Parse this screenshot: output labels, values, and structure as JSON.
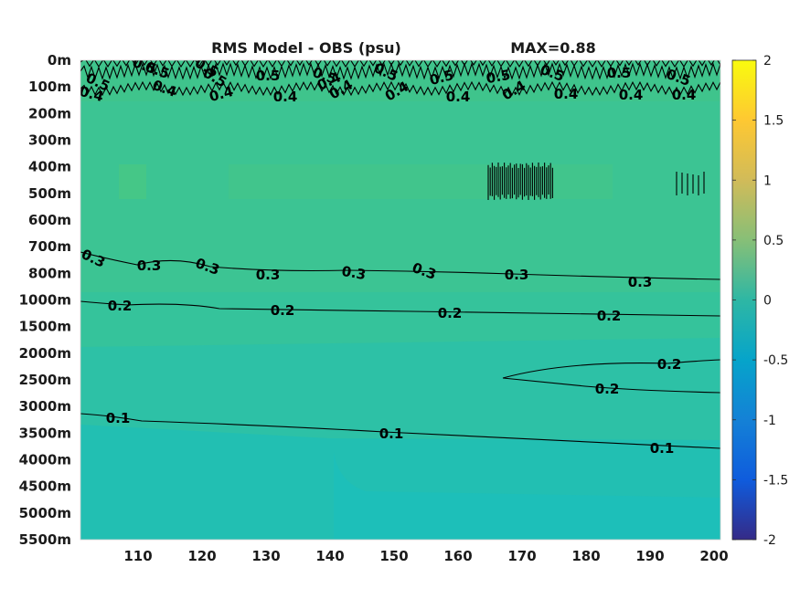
{
  "chart_data": {
    "type": "heatmap",
    "title": "RMS Model - OBS (psu)",
    "max_label": "MAX=0.88",
    "x_ticks": [
      110,
      120,
      130,
      140,
      150,
      160,
      170,
      180,
      190,
      200
    ],
    "xlim": [
      101,
      201
    ],
    "y_ticks": [
      "0m",
      "100m",
      "200m",
      "300m",
      "400m",
      "500m",
      "600m",
      "700m",
      "800m",
      "1000m",
      "1500m",
      "2000m",
      "2500m",
      "3000m",
      "3500m",
      "4000m",
      "4500m",
      "5000m",
      "5500m"
    ],
    "colorbar": {
      "ticks": [
        "2",
        "1.5",
        "1",
        "0.5",
        "0",
        "-0.5",
        "-1",
        "-1.5",
        "-2"
      ],
      "range": [
        -2,
        2
      ],
      "colormap": "parula"
    },
    "field_colors": {
      "0.45": "#3fc48c",
      "0.35": "#3cc493",
      "0.25": "#35c39b",
      "0.15": "#2dc1a6",
      "0.08": "#22bfb2",
      "0.05": "#1dbfb9",
      "bright_patch": "#45c787"
    },
    "contours": [
      {
        "level": 0.5,
        "labels": [
          "0.5",
          "0.5",
          "0.5",
          "0.5",
          "0.5",
          "0.5",
          "0.5",
          "0.5",
          "0.5",
          "0.5",
          "0.5",
          "0.5",
          "0.5"
        ]
      },
      {
        "level": 0.4,
        "labels": [
          "0.4",
          "0.4",
          "0.4",
          "0.4",
          "0.4",
          "0.4",
          "0.4",
          "0.4",
          "0.4",
          "0.4",
          "0.4",
          "0.4"
        ]
      },
      {
        "level": 0.3,
        "labels": [
          "0.3",
          "0.3",
          "0.3",
          "0.3",
          "0.3",
          "0.3",
          "0.3",
          "0.3",
          "0.3"
        ]
      },
      {
        "level": 0.2,
        "labels": [
          "0.2",
          "0.2",
          "0.2",
          "0.2",
          "0.2",
          "0.2"
        ]
      },
      {
        "level": 0.1,
        "labels": [
          "0.1",
          "0.1",
          "0.1"
        ]
      }
    ]
  }
}
